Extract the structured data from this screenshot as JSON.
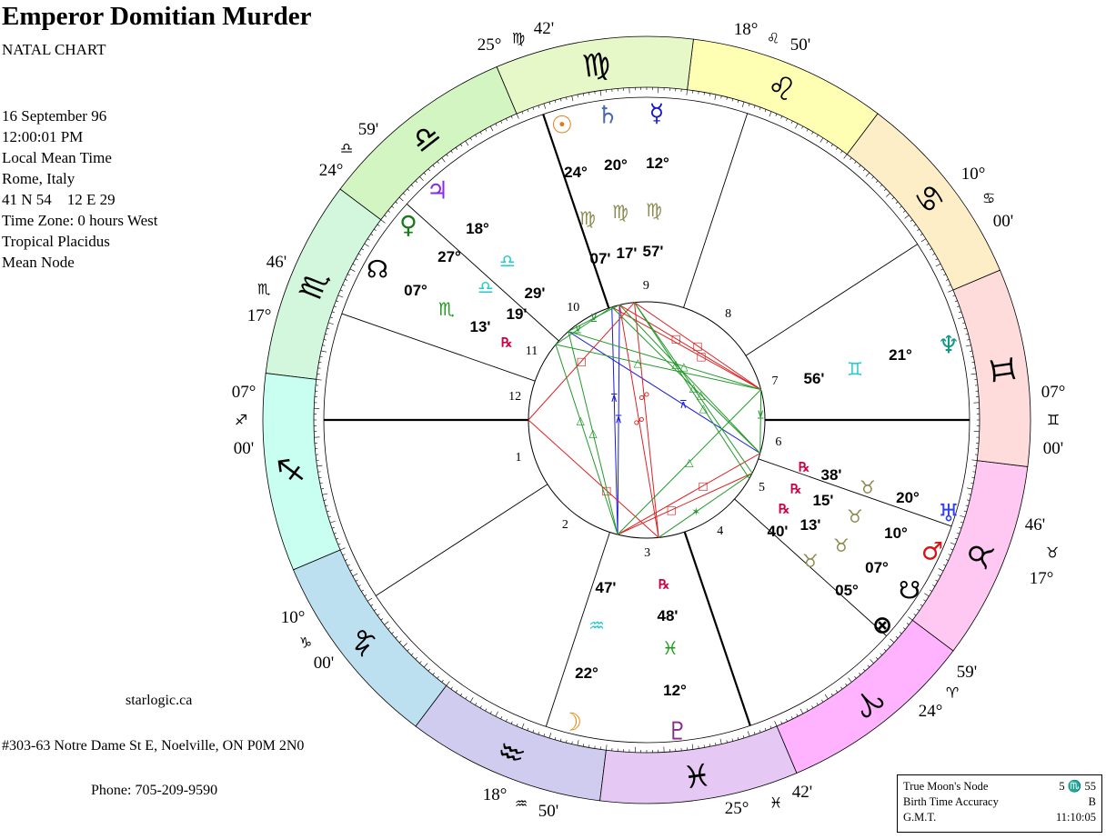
{
  "header": {
    "title": "Emperor Domitian Murder",
    "subtitle": "NATAL CHART"
  },
  "info": [
    "16 September 96",
    "12:00:01 PM",
    "Local Mean Time",
    "Rome, Italy",
    "41 N 54    12 E 29",
    "Time Zone: 0 hours West",
    "Tropical Placidus",
    "Mean Node"
  ],
  "footer": {
    "website": "starlogic.ca",
    "address": "#303-63 Notre Dame St E, Noelville, ON P0M 2N0",
    "phone": "Phone: 705-209-9590"
  },
  "info_box": [
    {
      "label": "True Moon's Node",
      "value": "5 ♏ 55"
    },
    {
      "label": "Birth Time Accuracy",
      "value": "B"
    },
    {
      "label": "G.M.T.",
      "value": "11:10:05"
    }
  ],
  "chart_data": {
    "type": "natal-wheel",
    "ascendant_longitude": 247,
    "signs": [
      {
        "name": "Aries",
        "glyph": "♈",
        "color": "#ffb3ff"
      },
      {
        "name": "Taurus",
        "glyph": "♉",
        "color": "#ffc8f2"
      },
      {
        "name": "Gemini",
        "glyph": "♊",
        "color": "#ffdcdc"
      },
      {
        "name": "Cancer",
        "glyph": "♋",
        "color": "#fdeec8"
      },
      {
        "name": "Leo",
        "glyph": "♌",
        "color": "#ffffb4"
      },
      {
        "name": "Virgo",
        "glyph": "♍",
        "color": "#e6f8c8"
      },
      {
        "name": "Libra",
        "glyph": "♎",
        "color": "#d2f5c2"
      },
      {
        "name": "Scorpio",
        "glyph": "♏",
        "color": "#d2f7dc"
      },
      {
        "name": "Sagittarius",
        "glyph": "♐",
        "color": "#c8fff0"
      },
      {
        "name": "Capricorn",
        "glyph": "♑",
        "color": "#bde0f0"
      },
      {
        "name": "Aquarius",
        "glyph": "♒",
        "color": "#d0ccf0"
      },
      {
        "name": "Pisces",
        "glyph": "♓",
        "color": "#e6c8f4"
      }
    ],
    "houses": [
      {
        "num": "1",
        "deg": "07°",
        "sign": "♐",
        "min": "00'",
        "lon": 247.0
      },
      {
        "num": "2",
        "deg": "10°",
        "sign": "♑",
        "min": "00'",
        "lon": 280.0
      },
      {
        "num": "3",
        "deg": "18°",
        "sign": "♒",
        "min": "50'",
        "lon": 318.83
      },
      {
        "num": "4",
        "deg": "25°",
        "sign": "♓",
        "min": "42'",
        "lon": 355.7
      },
      {
        "num": "5",
        "deg": "24°",
        "sign": "♈",
        "min": "59'",
        "lon": 24.98
      },
      {
        "num": "6",
        "deg": "17°",
        "sign": "♉",
        "min": "46'",
        "lon": 47.77
      },
      {
        "num": "7",
        "deg": "07°",
        "sign": "♊",
        "min": "00'",
        "lon": 67.0
      },
      {
        "num": "8",
        "deg": "10°",
        "sign": "♋",
        "min": "00'",
        "lon": 100.0
      },
      {
        "num": "9",
        "deg": "18°",
        "sign": "♌",
        "min": "50'",
        "lon": 138.83
      },
      {
        "num": "10",
        "deg": "25°",
        "sign": "♍",
        "min": "42'",
        "lon": 175.7
      },
      {
        "num": "11",
        "deg": "24°",
        "sign": "♎",
        "min": "59'",
        "lon": 204.98
      },
      {
        "num": "12",
        "deg": "17°",
        "sign": "♏",
        "min": "46'",
        "lon": 227.77
      }
    ],
    "planets": [
      {
        "id": "sun",
        "glyph": "☉",
        "color": "#e07b10",
        "deg": "24°",
        "sign": "♍",
        "sign_color": "#8b8b50",
        "min": "07'",
        "rx": "",
        "lon": 174.12
      },
      {
        "id": "saturn",
        "glyph": "♄",
        "color": "#4a6aaa",
        "deg": "20°",
        "sign": "♍",
        "sign_color": "#8b8b50",
        "min": "17'",
        "rx": "",
        "lon": 170.28
      },
      {
        "id": "mercury",
        "glyph": "☿",
        "color": "#1a1acc",
        "deg": "12°",
        "sign": "♍",
        "sign_color": "#8b8b50",
        "min": "57'",
        "rx": "",
        "lon": 162.95
      },
      {
        "id": "jupiter",
        "glyph": "♃",
        "color": "#8a2be2",
        "deg": "18°",
        "sign": "♎",
        "sign_color": "#22cccc",
        "min": "29'",
        "rx": "",
        "lon": 198.48
      },
      {
        "id": "venus",
        "glyph": "♀",
        "color": "#1a7a1a",
        "deg": "27°",
        "sign": "♎",
        "sign_color": "#22cccc",
        "min": "19'",
        "rx": "",
        "lon": 207.32
      },
      {
        "id": "node",
        "glyph": "☊",
        "color": "#000000",
        "deg": "07°",
        "sign": "♏",
        "sign_color": "#1a9a1a",
        "min": "13'",
        "rx": "℞",
        "lon": 217.22
      },
      {
        "id": "neptune",
        "glyph": "♆",
        "color": "#119988",
        "deg": "21°",
        "sign": "♊",
        "sign_color": "#22cccc",
        "min": "56'",
        "rx": "",
        "lon": 81.93
      },
      {
        "id": "uranus",
        "glyph": "♅",
        "color": "#3344ee",
        "deg": "20°",
        "sign": "♉",
        "sign_color": "#8b8b50",
        "min": "38'",
        "rx": "℞",
        "lon": 50.63
      },
      {
        "id": "mars",
        "glyph": "♂",
        "color": "#dd1111",
        "deg": "10°",
        "sign": "♉",
        "sign_color": "#8b8b50",
        "min": "15'",
        "rx": "℞",
        "lon": 40.25
      },
      {
        "id": "snode",
        "glyph": "☋",
        "color": "#000000",
        "deg": "07°",
        "sign": "♉",
        "sign_color": "#8b8b50",
        "min": "13'",
        "rx": "℞",
        "lon": 37.22
      },
      {
        "id": "fortune",
        "glyph": "⊗",
        "color": "#000000",
        "deg": "05°",
        "sign": "♉",
        "sign_color": "#8b8b50",
        "min": "40'",
        "rx": "",
        "lon": 35.67
      },
      {
        "id": "moon",
        "glyph": "☽",
        "color": "#e08a10",
        "deg": "22°",
        "sign": "♒",
        "sign_color": "#22cccc",
        "min": "47'",
        "rx": "",
        "lon": 322.78
      },
      {
        "id": "pluto",
        "glyph": "♇",
        "color": "#8a2a8a",
        "deg": "12°",
        "sign": "♓",
        "sign_color": "#1a9a1a",
        "min": "48'",
        "rx": "℞",
        "lon": 342.8
      }
    ],
    "aspect_types": {
      "opposition": {
        "glyph": "☍",
        "color": "#dd2222"
      },
      "square": {
        "glyph": "□",
        "color": "#dd2222"
      },
      "trine": {
        "glyph": "△",
        "color": "#22992a"
      },
      "sextile": {
        "glyph": "✶",
        "color": "#22992a"
      },
      "semisextile": {
        "glyph": "⊻",
        "color": "#22992a"
      },
      "quincunx": {
        "glyph": "⊼",
        "color": "#1a1add"
      }
    },
    "aspects": [
      [
        "sun",
        "moon",
        "quincunx"
      ],
      [
        "saturn",
        "moon",
        "quincunx"
      ],
      [
        "jupiter",
        "uranus",
        "quincunx"
      ],
      [
        "mercury",
        "pluto",
        "opposition"
      ],
      [
        "saturn",
        "pluto",
        "opposition"
      ],
      [
        "sun",
        "neptune",
        "square"
      ],
      [
        "saturn",
        "neptune",
        "square"
      ],
      [
        "mercury",
        "neptune",
        "square"
      ],
      [
        "moon",
        "uranus",
        "square"
      ],
      [
        "moon",
        "mars",
        "square"
      ],
      [
        "asc",
        "mercury",
        "square"
      ],
      [
        "asc",
        "pluto",
        "square"
      ],
      [
        "saturn",
        "uranus",
        "trine"
      ],
      [
        "mercury",
        "mars",
        "trine"
      ],
      [
        "mercury",
        "snode",
        "trine"
      ],
      [
        "venus",
        "moon",
        "trine"
      ],
      [
        "jupiter",
        "moon",
        "trine"
      ],
      [
        "jupiter",
        "neptune",
        "trine"
      ],
      [
        "venus",
        "neptune",
        "trine"
      ],
      [
        "moon",
        "neptune",
        "trine"
      ],
      [
        "sun",
        "uranus",
        "trine"
      ],
      [
        "pluto",
        "mars",
        "sextile"
      ],
      [
        "saturn",
        "jupiter",
        "semisextile"
      ],
      [
        "sun",
        "venus",
        "semisextile"
      ],
      [
        "neptune",
        "uranus",
        "semisextile"
      ]
    ]
  }
}
